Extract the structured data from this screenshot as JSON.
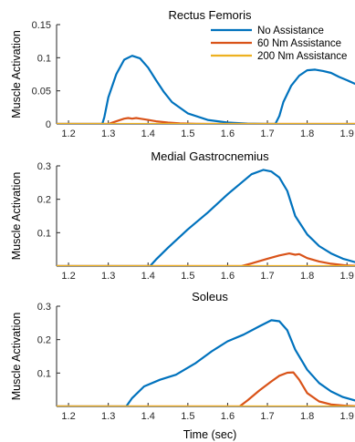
{
  "colors": {
    "no_assistance": "#0072BD",
    "nm60": "#D95319",
    "nm200": "#EDB120",
    "axis": "#262626"
  },
  "legend": {
    "entries": [
      "No Assistance",
      "60 Nm Assistance",
      "200 Nm Assistance"
    ]
  },
  "xlabel": "Time (sec)",
  "chart_data": [
    {
      "type": "line",
      "title": "Rectus Femoris",
      "xlabel": "",
      "ylabel": "Muscle Activation",
      "xlim": [
        1.17,
        1.95
      ],
      "ylim": [
        0,
        0.15
      ],
      "x_ticks": [
        "1.2",
        "1.3",
        "1.4",
        "1.5",
        "1.6",
        "1.7",
        "1.8",
        "1.9"
      ],
      "y_ticks": [
        "0",
        "0.05",
        "0.1",
        "0.15"
      ],
      "series": [
        {
          "name": "No Assistance",
          "x": [
            1.17,
            1.285,
            1.29,
            1.3,
            1.32,
            1.34,
            1.36,
            1.38,
            1.4,
            1.42,
            1.44,
            1.46,
            1.5,
            1.55,
            1.6,
            1.65,
            1.7,
            1.72,
            1.73,
            1.74,
            1.76,
            1.78,
            1.8,
            1.82,
            1.84,
            1.86,
            1.88,
            1.9,
            1.93
          ],
          "y": [
            0,
            0,
            0.01,
            0.04,
            0.075,
            0.097,
            0.103,
            0.099,
            0.085,
            0.066,
            0.048,
            0.033,
            0.016,
            0.006,
            0.002,
            0.0005,
            0,
            0,
            0.012,
            0.033,
            0.058,
            0.073,
            0.081,
            0.082,
            0.08,
            0.077,
            0.071,
            0.066,
            0.058
          ]
        },
        {
          "name": "60 Nm Assistance",
          "x": [
            1.17,
            1.3,
            1.32,
            1.34,
            1.35,
            1.36,
            1.37,
            1.38,
            1.4,
            1.42,
            1.45,
            1.48,
            1.52,
            1.55,
            1.95
          ],
          "y": [
            0,
            0,
            0.004,
            0.008,
            0.009,
            0.008,
            0.009,
            0.008,
            0.006,
            0.004,
            0.002,
            0.001,
            0.0003,
            0,
            0
          ]
        },
        {
          "name": "200 Nm Assistance",
          "x": [
            1.17,
            1.95
          ],
          "y": [
            0,
            0
          ]
        }
      ]
    },
    {
      "type": "line",
      "title": "Medial Gastrocnemius",
      "xlabel": "",
      "ylabel": "Muscle Activation",
      "xlim": [
        1.17,
        1.95
      ],
      "ylim": [
        0,
        0.3
      ],
      "x_ticks": [
        "1.2",
        "1.3",
        "1.4",
        "1.5",
        "1.6",
        "1.7",
        "1.8",
        "1.9"
      ],
      "y_ticks": [
        "0.1",
        "0.2",
        "0.3"
      ],
      "series": [
        {
          "name": "No Assistance",
          "x": [
            1.17,
            1.405,
            1.42,
            1.45,
            1.5,
            1.55,
            1.6,
            1.63,
            1.66,
            1.69,
            1.71,
            1.73,
            1.75,
            1.77,
            1.8,
            1.83,
            1.86,
            1.89,
            1.92,
            1.94
          ],
          "y": [
            0,
            0,
            0.02,
            0.055,
            0.11,
            0.16,
            0.215,
            0.245,
            0.275,
            0.288,
            0.283,
            0.265,
            0.225,
            0.15,
            0.095,
            0.06,
            0.038,
            0.022,
            0.012,
            0.006
          ]
        },
        {
          "name": "60 Nm Assistance",
          "x": [
            1.17,
            1.635,
            1.66,
            1.7,
            1.73,
            1.755,
            1.77,
            1.78,
            1.79,
            1.8,
            1.83,
            1.86,
            1.9,
            1.95
          ],
          "y": [
            0,
            0,
            0.008,
            0.022,
            0.032,
            0.038,
            0.034,
            0.036,
            0.03,
            0.024,
            0.014,
            0.007,
            0.002,
            0
          ]
        },
        {
          "name": "200 Nm Assistance",
          "x": [
            1.17,
            1.95
          ],
          "y": [
            0,
            0
          ]
        }
      ]
    },
    {
      "type": "line",
      "title": "Soleus",
      "xlabel": "Time (sec)",
      "ylabel": "Muscle Activation",
      "xlim": [
        1.17,
        1.95
      ],
      "ylim": [
        0,
        0.3
      ],
      "x_ticks": [
        "1.2",
        "1.3",
        "1.4",
        "1.5",
        "1.6",
        "1.7",
        "1.8",
        "1.9"
      ],
      "y_ticks": [
        "0.1",
        "0.2",
        "0.3"
      ],
      "series": [
        {
          "name": "No Assistance",
          "x": [
            1.17,
            1.345,
            1.36,
            1.39,
            1.43,
            1.47,
            1.52,
            1.56,
            1.6,
            1.64,
            1.68,
            1.71,
            1.73,
            1.75,
            1.77,
            1.8,
            1.83,
            1.86,
            1.89,
            1.92,
            1.94
          ],
          "y": [
            0,
            0,
            0.025,
            0.06,
            0.08,
            0.095,
            0.13,
            0.165,
            0.195,
            0.215,
            0.24,
            0.258,
            0.255,
            0.228,
            0.17,
            0.11,
            0.07,
            0.045,
            0.028,
            0.018,
            0.012
          ]
        },
        {
          "name": "60 Nm Assistance",
          "x": [
            1.17,
            1.63,
            1.65,
            1.68,
            1.71,
            1.73,
            1.75,
            1.765,
            1.78,
            1.8,
            1.83,
            1.86,
            1.9,
            1.95
          ],
          "y": [
            0,
            0,
            0.018,
            0.048,
            0.075,
            0.092,
            0.101,
            0.102,
            0.08,
            0.04,
            0.015,
            0.006,
            0.002,
            0
          ]
        },
        {
          "name": "200 Nm Assistance",
          "x": [
            1.17,
            1.95
          ],
          "y": [
            0,
            0
          ]
        }
      ]
    }
  ]
}
